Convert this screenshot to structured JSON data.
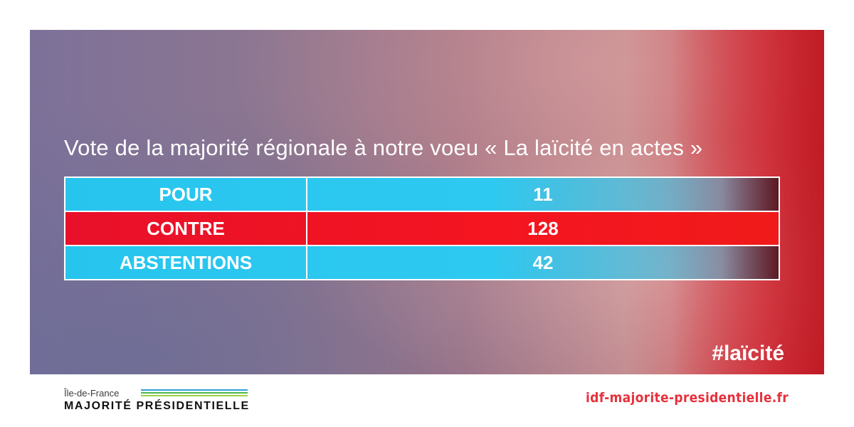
{
  "banner": {
    "title": "Vote de la majorité régionale à notre voeu « La laïcité en actes »",
    "rows": [
      {
        "label": "POUR",
        "value": "11",
        "color": "#2ec9f0"
      },
      {
        "label": "CONTRE",
        "value": "128",
        "color": "#f41520"
      },
      {
        "label": "ABSTENTIONS",
        "value": "42",
        "color": "#2ec9f0"
      }
    ],
    "hashtag": "#laïcité"
  },
  "footer": {
    "region": "Île-de-France",
    "brand": "MAJORITÉ PRÉSIDENTIELLE",
    "stripe_colors": [
      "#2e9fd8",
      "#4cb848",
      "#9fd24a"
    ],
    "website": "idf-majorite-presidentielle.fr"
  }
}
